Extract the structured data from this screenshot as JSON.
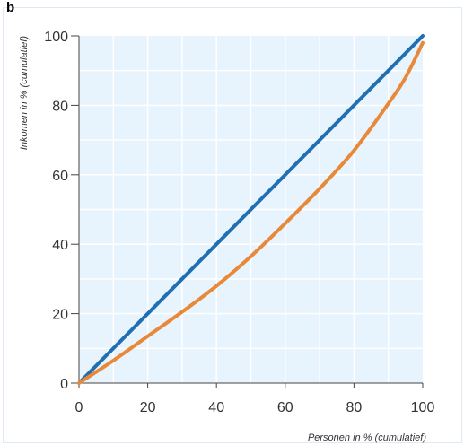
{
  "panel_label": "b",
  "colors": {
    "plot_background": "#e8f4fd",
    "grid": "#ffffff",
    "equality_line": "#1f6fb2",
    "lorenz_curve": "#e8893a"
  },
  "chart_data": {
    "type": "line",
    "title": "",
    "xlabel": "Personen in % (cumulatief)",
    "ylabel": "Inkomen in % (cumulatief)",
    "xlim": [
      0,
      100
    ],
    "ylim": [
      0,
      100
    ],
    "xticks": [
      "0",
      "20",
      "40",
      "60",
      "80",
      "100"
    ],
    "yticks": [
      "0",
      "20",
      "40",
      "60",
      "80",
      "100"
    ],
    "grid": true,
    "series": [
      {
        "name": "",
        "color": "#1f6fb2",
        "x": [
          0,
          100
        ],
        "y": [
          0,
          100
        ]
      },
      {
        "name": "",
        "color": "#e8893a",
        "x": [
          0,
          10,
          20,
          30,
          40,
          50,
          60,
          70,
          80,
          90,
          95,
          100
        ],
        "y": [
          0,
          6.5,
          13.5,
          20.5,
          28,
          36.5,
          46,
          56,
          67,
          80.5,
          88,
          98
        ]
      }
    ]
  }
}
